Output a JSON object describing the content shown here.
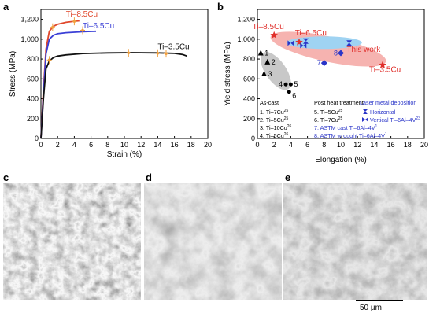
{
  "panels": {
    "a": "a",
    "b": "b",
    "c": "c",
    "d": "d",
    "e": "e"
  },
  "chart_data": [
    {
      "type": "line",
      "panel": "a",
      "xlabel": "Strain (%)",
      "ylabel": "Stress (MPa)",
      "xlim": [
        0,
        20
      ],
      "ylim": [
        0,
        1300
      ],
      "xticks": [
        "0",
        "2",
        "4",
        "6",
        "8",
        "10",
        "12",
        "14",
        "16",
        "18",
        "20"
      ],
      "yticks": [
        "0",
        "200",
        "400",
        "600",
        "800",
        "1,000",
        "1,200"
      ],
      "series": [
        {
          "name": "Ti–8.5Cu",
          "color": "#e0482c",
          "x": [
            0,
            0.3,
            0.6,
            1.0,
            1.5,
            2.0,
            3.0,
            4.0,
            4.6
          ],
          "y": [
            0,
            500,
            900,
            1080,
            1130,
            1150,
            1170,
            1180,
            1185
          ]
        },
        {
          "name": "Ti–6.5Cu",
          "color": "#3a3fd6",
          "x": [
            0,
            0.3,
            0.6,
            1.0,
            1.5,
            2.0,
            3.0,
            4.0,
            5.0,
            6.0,
            6.6
          ],
          "y": [
            0,
            450,
            850,
            1000,
            1040,
            1055,
            1065,
            1070,
            1075,
            1078,
            1080
          ]
        },
        {
          "name": "Ti–3.5Cu",
          "color": "#111111",
          "x": [
            0,
            0.3,
            0.6,
            1.0,
            1.5,
            2.0,
            3.0,
            5.0,
            8.0,
            11.0,
            14.0,
            16.0,
            17.0,
            17.5
          ],
          "y": [
            0,
            400,
            700,
            780,
            815,
            830,
            842,
            855,
            862,
            864,
            862,
            857,
            845,
            830
          ]
        }
      ],
      "error_points": [
        {
          "x": 1.4,
          "y": 1120,
          "color": "#f0a040"
        },
        {
          "x": 4.0,
          "y": 1180,
          "color": "#f0a040"
        },
        {
          "x": 5.0,
          "y": 1090,
          "color": "#f0a040"
        },
        {
          "x": 1.0,
          "y": 790,
          "color": "#f0a040"
        },
        {
          "x": 10.5,
          "y": 862,
          "color": "#f0a040"
        },
        {
          "x": 14.0,
          "y": 858,
          "color": "#f0a040"
        },
        {
          "x": 15.0,
          "y": 855,
          "color": "#f0a040"
        }
      ]
    },
    {
      "type": "scatter",
      "panel": "b",
      "xlabel": "Elongation (%)",
      "ylabel": "Yield stress (MPa)",
      "xlim": [
        0,
        20
      ],
      "ylim": [
        0,
        1300
      ],
      "xticks": [
        "0",
        "2",
        "4",
        "6",
        "8",
        "10",
        "12",
        "14",
        "16",
        "18",
        "20"
      ],
      "yticks": [
        "0",
        "200",
        "400",
        "600",
        "800",
        "1,000",
        "1,200"
      ],
      "labels": {
        "ti85": "Ti–8.5Cu",
        "ti65": "Ti–6.5Cu",
        "ti35": "Ti–3.5Cu",
        "thiswork": "This work"
      },
      "this_work": [
        {
          "x": 2.0,
          "y": 1040
        },
        {
          "x": 5.0,
          "y": 970
        },
        {
          "x": 15.0,
          "y": 740
        }
      ],
      "as_cast_points": [
        {
          "label": "1",
          "x": 0.4,
          "y": 860
        },
        {
          "label": "2",
          "x": 1.2,
          "y": 770
        },
        {
          "label": "3",
          "x": 0.8,
          "y": 650
        }
      ],
      "heat_points": [
        {
          "label": "4",
          "x": 3.4,
          "y": 545
        },
        {
          "label": "5",
          "x": 4.0,
          "y": 545
        },
        {
          "label": "6",
          "x": 3.8,
          "y": 470
        }
      ],
      "astm_points": [
        {
          "label": "7",
          "x": 8.0,
          "y": 760
        },
        {
          "label": "8",
          "x": 10.0,
          "y": 860
        }
      ],
      "lmd_horizontal": [
        {
          "x": 5.8,
          "y": 985
        },
        {
          "x": 11.0,
          "y": 965
        }
      ],
      "lmd_vertical": [
        {
          "x": 4.0,
          "y": 960
        },
        {
          "x": 5.5,
          "y": 935
        }
      ],
      "legend": {
        "col1_title": "As-cast",
        "col1": [
          "1. Ti–7Cu",
          "2. Ti–5Cu",
          "3. Ti–10Cu",
          "4. Ti–5Cu"
        ],
        "col1_refs": [
          "25",
          "25",
          "26",
          "26"
        ],
        "col2_title": "Post heat treatment",
        "col2": [
          "5. Ti–5Cu",
          "6. Ti–7Cu"
        ],
        "col2_refs": [
          "25",
          "25"
        ],
        "col2_astm": [
          "7. ASTM cast Ti–6Al–4V",
          "8. ASTM wrought Ti–6Al–4V"
        ],
        "col2_astm_refs": [
          "1",
          "1"
        ],
        "col3_title": "Laser metal deposition",
        "col3": [
          "Horizontal",
          "Vertical Ti–6Al–4V"
        ],
        "col3_refs": [
          "",
          "23"
        ]
      },
      "colors": {
        "red_ellipse": "#f6b3b0",
        "blue_ellipse": "#9fd3f2",
        "gray_ellipse": "#c8c8c8",
        "red": "#e0302c",
        "blue": "#2a35c8"
      }
    }
  ],
  "scale_bar": {
    "label": "50 µm"
  }
}
